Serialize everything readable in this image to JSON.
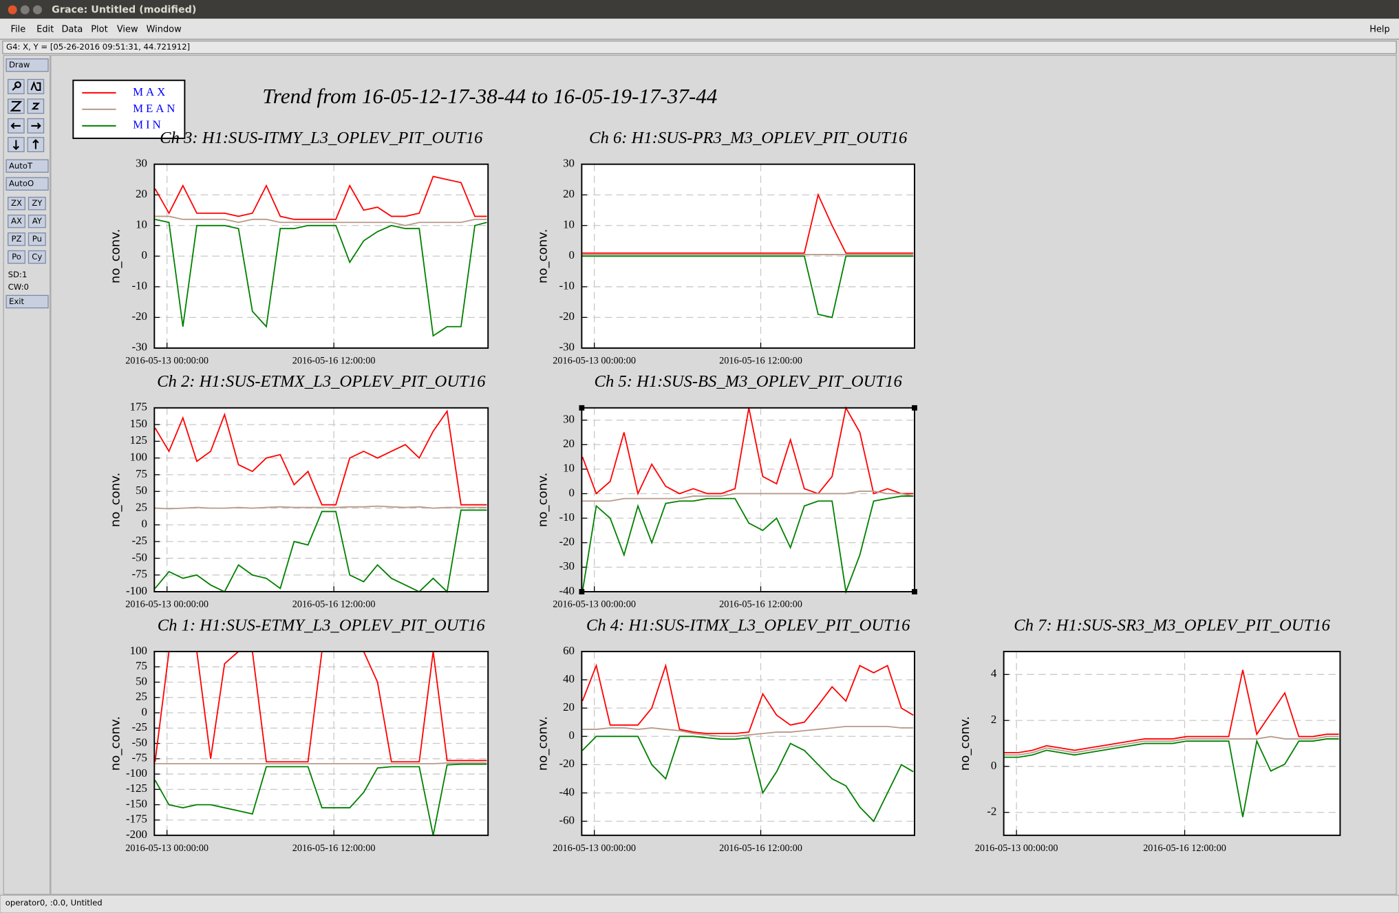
{
  "window": {
    "title": "Grace: Untitled (modified)",
    "menu": [
      "File",
      "Edit",
      "Data",
      "Plot",
      "View",
      "Window"
    ],
    "help": "Help",
    "coordinates": "G4: X, Y = [05-26-2016 09:51:31, 44.721912]",
    "toolbar": [
      "Draw",
      "AutoT",
      "AutoO",
      "ZX",
      "ZY",
      "AX",
      "AY",
      "PZ",
      "Pu",
      "Po",
      "Cy",
      "Exit"
    ],
    "status_lines": [
      "SD:1",
      "CW:0"
    ],
    "status": "operator0, :0.0, Untitled"
  },
  "title": "Trend from 16-05-12-17-38-44 to 16-05-19-17-37-44",
  "chart_data": [
    {
      "type": "line",
      "title": "Ch 3: H1:SUS-ITMY_L3_OPLEV_PIT_OUT16",
      "y_label": "no_conv.",
      "x": [
        -6,
        1,
        8,
        15,
        22,
        29,
        36,
        43,
        50,
        57,
        64,
        71,
        78,
        85,
        92,
        99,
        106,
        113,
        120,
        127,
        134,
        141,
        148,
        155,
        161
      ],
      "xlim": [
        -6.36,
        161.63
      ],
      "xticks": [
        {
          "value": 0,
          "label": "2016-05-13 00:00:00"
        },
        {
          "value": 84,
          "label": "2016-05-16 12:00:00"
        }
      ],
      "ylim": [
        -30,
        30
      ],
      "yticks": [
        -30,
        -20,
        -10,
        0,
        10,
        20,
        30
      ],
      "grid": true,
      "series": [
        {
          "name": "MAX",
          "color": "#ff0000",
          "values": [
            22,
            14,
            23,
            14,
            14,
            14,
            13,
            14,
            23,
            13,
            12,
            12,
            12,
            12,
            23,
            15,
            16,
            13,
            13,
            14,
            26,
            25,
            24,
            13,
            13
          ]
        },
        {
          "name": "MEAN",
          "color": "#b89a8a",
          "values": [
            13,
            13,
            12,
            12,
            12,
            12,
            11,
            12,
            12,
            11,
            11,
            11,
            11,
            11,
            11,
            11,
            11,
            11,
            10,
            11,
            11,
            11,
            11,
            12,
            12
          ]
        },
        {
          "name": "MIN",
          "color": "#008000",
          "values": [
            12,
            11,
            -23,
            10,
            10,
            10,
            9,
            -18,
            -23,
            9,
            9,
            10,
            10,
            10,
            -2,
            5,
            8,
            10,
            9,
            9,
            -26,
            -23,
            -23,
            10,
            11
          ]
        }
      ]
    },
    {
      "type": "line",
      "title": "Ch 6: H1:SUS-PR3_M3_OPLEV_PIT_OUT16",
      "y_label": "no_conv.",
      "x": [
        -6,
        1,
        8,
        15,
        22,
        29,
        36,
        43,
        50,
        57,
        64,
        71,
        78,
        85,
        92,
        99,
        106,
        113,
        120,
        127,
        134,
        141,
        148,
        155,
        161
      ],
      "xlim": [
        -6.36,
        161.63
      ],
      "xticks": [
        {
          "value": 0,
          "label": "2016-05-13 00:00:00"
        },
        {
          "value": 84,
          "label": "2016-05-16 12:00:00"
        }
      ],
      "ylim": [
        -30,
        30
      ],
      "yticks": [
        -30,
        -20,
        -10,
        0,
        10,
        20,
        30
      ],
      "grid": true,
      "series": [
        {
          "name": "MAX",
          "color": "#ff0000",
          "values": [
            1,
            1,
            1,
            1,
            1,
            1,
            1,
            1,
            1,
            1,
            1,
            1,
            1,
            1,
            1,
            1,
            1,
            20,
            10,
            1,
            1,
            1,
            1,
            1,
            1
          ]
        },
        {
          "name": "MEAN",
          "color": "#b89a8a",
          "values": [
            0.5,
            0.5,
            0.5,
            0.5,
            0.5,
            0.5,
            0.5,
            0.5,
            0.5,
            0.5,
            0.5,
            0.5,
            0.5,
            0.5,
            0.5,
            0.5,
            0.5,
            0.5,
            0.5,
            0.5,
            0.5,
            0.5,
            0.5,
            0.5,
            0.5
          ]
        },
        {
          "name": "MIN",
          "color": "#008000",
          "values": [
            0,
            0,
            0,
            0,
            0,
            0,
            0,
            0,
            0,
            0,
            0,
            0,
            0,
            0,
            0,
            0,
            0,
            -19,
            -20,
            0,
            0,
            0,
            0,
            0,
            0
          ]
        }
      ]
    },
    {
      "type": "line",
      "title": "Ch 2: H1:SUS-ETMX_L3_OPLEV_PIT_OUT16",
      "y_label": "no_conv.",
      "x": [
        -6,
        1,
        8,
        15,
        22,
        29,
        36,
        43,
        50,
        57,
        64,
        71,
        78,
        85,
        92,
        99,
        106,
        113,
        120,
        127,
        134,
        141,
        148,
        155,
        161
      ],
      "xlim": [
        -6.36,
        161.63
      ],
      "xticks": [
        {
          "value": 0,
          "label": "2016-05-13 00:00:00"
        },
        {
          "value": 84,
          "label": "2016-05-16 12:00:00"
        }
      ],
      "ylim": [
        -100,
        175
      ],
      "yticks": [
        -100,
        -75,
        -50,
        -25,
        0,
        25,
        50,
        75,
        100,
        125,
        150,
        175
      ],
      "grid": true,
      "series": [
        {
          "name": "MAX",
          "color": "#ff0000",
          "values": [
            145,
            110,
            160,
            95,
            110,
            165,
            90,
            80,
            100,
            105,
            60,
            80,
            30,
            30,
            100,
            110,
            100,
            110,
            120,
            100,
            140,
            170,
            30,
            30,
            30
          ]
        },
        {
          "name": "MEAN",
          "color": "#b89a8a",
          "values": [
            25,
            24,
            25,
            26,
            25,
            25,
            26,
            25,
            26,
            27,
            26,
            26,
            26,
            26,
            27,
            27,
            28,
            27,
            26,
            27,
            25,
            26,
            26,
            26,
            26
          ]
        },
        {
          "name": "MIN",
          "color": "#008000",
          "values": [
            -95,
            -70,
            -80,
            -75,
            -90,
            -100,
            -60,
            -75,
            -80,
            -95,
            -25,
            -30,
            20,
            20,
            -75,
            -85,
            -60,
            -80,
            -90,
            -100,
            -80,
            -100,
            22,
            22,
            22
          ]
        }
      ]
    },
    {
      "type": "line",
      "title": "Ch 5: H1:SUS-BS_M3_OPLEV_PIT_OUT16",
      "y_label": "no_conv.",
      "x": [
        -6,
        1,
        8,
        15,
        22,
        29,
        36,
        43,
        50,
        57,
        64,
        71,
        78,
        85,
        92,
        99,
        106,
        113,
        120,
        127,
        134,
        141,
        148,
        155,
        161
      ],
      "xlim": [
        -6.36,
        161.63
      ],
      "xticks": [
        {
          "value": 0,
          "label": "2016-05-13 00:00:00"
        },
        {
          "value": 84,
          "label": "2016-05-16 12:00:00"
        }
      ],
      "ylim": [
        -40,
        35
      ],
      "yticks": [
        -40,
        -30,
        -20,
        -10,
        0,
        10,
        20,
        30
      ],
      "grid": true,
      "series": [
        {
          "name": "MAX",
          "color": "#ff0000",
          "values": [
            15,
            0,
            5,
            25,
            0,
            12,
            3,
            0,
            2,
            0,
            0,
            2,
            35,
            7,
            4,
            22,
            2,
            0,
            7,
            35,
            25,
            0,
            2,
            0,
            0
          ]
        },
        {
          "name": "MEAN",
          "color": "#b89a8a",
          "values": [
            -3,
            -3,
            -3,
            -2,
            -2,
            -2,
            -2,
            -2,
            -1,
            -1,
            -1,
            0,
            0,
            0,
            0,
            0,
            0,
            0,
            0,
            0,
            1,
            1,
            0,
            0,
            -1
          ]
        },
        {
          "name": "MIN",
          "color": "#008000",
          "values": [
            -40,
            -5,
            -10,
            -25,
            -5,
            -20,
            -4,
            -3,
            -3,
            -2,
            -2,
            -2,
            -12,
            -15,
            -10,
            -22,
            -5,
            -3,
            -3,
            -40,
            -25,
            -3,
            -2,
            -1,
            -1
          ]
        }
      ]
    },
    {
      "type": "line",
      "title": "Ch 1: H1:SUS-ETMY_L3_OPLEV_PIT_OUT16",
      "y_label": "no_conv.",
      "x": [
        -6,
        1,
        8,
        15,
        22,
        29,
        36,
        43,
        50,
        57,
        64,
        71,
        78,
        85,
        92,
        99,
        106,
        113,
        120,
        127,
        134,
        141,
        148,
        155,
        161
      ],
      "xlim": [
        -6.36,
        161.63
      ],
      "xticks": [
        {
          "value": 0,
          "label": "2016-05-13 00:00:00"
        },
        {
          "value": 84,
          "label": "2016-05-16 12:00:00"
        }
      ],
      "ylim": [
        -200,
        100
      ],
      "yticks": [
        -200,
        -175,
        -150,
        -125,
        -100,
        -75,
        -50,
        -25,
        0,
        25,
        50,
        75,
        100
      ],
      "grid": true,
      "series": [
        {
          "name": "MAX",
          "color": "#ff0000",
          "values": [
            -80,
            100,
            100,
            100,
            -75,
            80,
            100,
            100,
            -80,
            -80,
            -80,
            -80,
            100,
            100,
            100,
            100,
            50,
            -80,
            -80,
            -80,
            100,
            -78,
            -78,
            -78,
            -78
          ]
        },
        {
          "name": "MEAN",
          "color": "#b89a8a",
          "values": [
            -83,
            -83,
            -83,
            -83,
            -83,
            -83,
            -83,
            -83,
            -83,
            -83,
            -83,
            -83,
            -83,
            -83,
            -83,
            -83,
            -83,
            -83,
            -83,
            -83,
            -83,
            -82,
            -82,
            -82,
            -82
          ]
        },
        {
          "name": "MIN",
          "color": "#008000",
          "values": [
            -110,
            -150,
            -155,
            -150,
            -150,
            -155,
            -160,
            -165,
            -88,
            -88,
            -88,
            -88,
            -155,
            -155,
            -155,
            -130,
            -90,
            -88,
            -88,
            -88,
            -200,
            -85,
            -84,
            -84,
            -84
          ]
        }
      ]
    },
    {
      "type": "line",
      "title": "Ch 4: H1:SUS-ITMX_L3_OPLEV_PIT_OUT16",
      "y_label": "no_conv.",
      "x": [
        -6,
        1,
        8,
        15,
        22,
        29,
        36,
        43,
        50,
        57,
        64,
        71,
        78,
        85,
        92,
        99,
        106,
        113,
        120,
        127,
        134,
        141,
        148,
        155,
        161
      ],
      "xlim": [
        -6.36,
        161.63
      ],
      "xticks": [
        {
          "value": 0,
          "label": "2016-05-13 00:00:00"
        },
        {
          "value": 84,
          "label": "2016-05-16 12:00:00"
        }
      ],
      "ylim": [
        -70,
        60
      ],
      "yticks": [
        -60,
        -40,
        -20,
        0,
        20,
        40,
        60
      ],
      "grid": true,
      "series": [
        {
          "name": "MAX",
          "color": "#ff0000",
          "values": [
            25,
            50,
            8,
            8,
            8,
            20,
            50,
            5,
            3,
            2,
            2,
            2,
            3,
            30,
            15,
            8,
            10,
            22,
            35,
            25,
            50,
            45,
            50,
            20,
            15
          ]
        },
        {
          "name": "MEAN",
          "color": "#b89a8a",
          "values": [
            5,
            5,
            6,
            6,
            5,
            6,
            5,
            4,
            2,
            1,
            0,
            0,
            1,
            2,
            3,
            3,
            4,
            5,
            6,
            7,
            7,
            7,
            7,
            6,
            6
          ]
        },
        {
          "name": "MIN",
          "color": "#008000",
          "values": [
            -10,
            0,
            0,
            0,
            0,
            -20,
            -30,
            0,
            0,
            -1,
            -2,
            -2,
            -1,
            -40,
            -25,
            -5,
            -10,
            -20,
            -30,
            -35,
            -50,
            -60,
            -40,
            -20,
            -25
          ]
        }
      ]
    },
    {
      "type": "line",
      "title": "Ch 7: H1:SUS-SR3_M3_OPLEV_PIT_OUT16",
      "y_label": "no_conv.",
      "x": [
        -6,
        1,
        8,
        15,
        22,
        29,
        36,
        43,
        50,
        57,
        64,
        71,
        78,
        85,
        92,
        99,
        106,
        113,
        120,
        127,
        134,
        141,
        148,
        155,
        161
      ],
      "xlim": [
        -6.36,
        161.63
      ],
      "xticks": [
        {
          "value": 0,
          "label": "2016-05-13 00:00:00"
        },
        {
          "value": 84,
          "label": "2016-05-16 12:00:00"
        }
      ],
      "ylim": [
        -3,
        5
      ],
      "yticks": [
        -2,
        0,
        2,
        4
      ],
      "grid": true,
      "series": [
        {
          "name": "MAX",
          "color": "#ff0000",
          "values": [
            0.6,
            0.6,
            0.7,
            0.9,
            0.8,
            0.7,
            0.8,
            0.9,
            1.0,
            1.1,
            1.2,
            1.2,
            1.2,
            1.3,
            1.3,
            1.3,
            1.3,
            4.2,
            1.4,
            2.3,
            3.2,
            1.3,
            1.3,
            1.4,
            1.4
          ]
        },
        {
          "name": "MEAN",
          "color": "#b89a8a",
          "values": [
            0.5,
            0.5,
            0.6,
            0.8,
            0.7,
            0.6,
            0.7,
            0.8,
            0.9,
            1.0,
            1.1,
            1.1,
            1.1,
            1.2,
            1.2,
            1.2,
            1.2,
            1.2,
            1.2,
            1.3,
            1.2,
            1.2,
            1.2,
            1.3,
            1.3
          ]
        },
        {
          "name": "MIN",
          "color": "#008000",
          "values": [
            0.4,
            0.4,
            0.5,
            0.7,
            0.6,
            0.5,
            0.6,
            0.7,
            0.8,
            0.9,
            1.0,
            1.0,
            1.0,
            1.1,
            1.1,
            1.1,
            1.1,
            -2.2,
            1.1,
            -0.2,
            0.1,
            1.1,
            1.1,
            1.2,
            1.2
          ]
        }
      ]
    }
  ]
}
